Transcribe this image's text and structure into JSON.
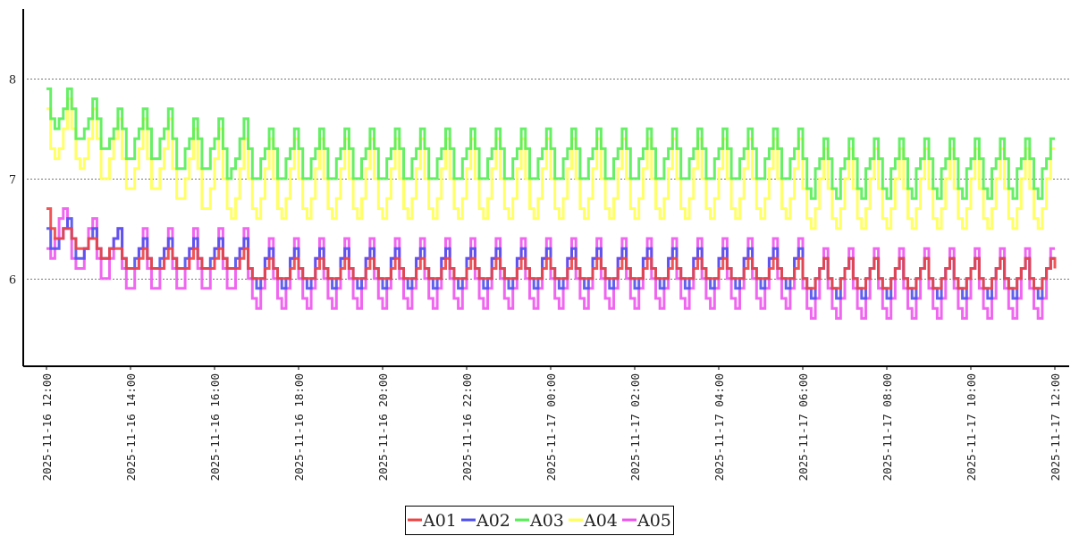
{
  "chart_data": {
    "type": "line",
    "title": "",
    "xlabel": "",
    "ylabel": "",
    "ylim": [
      5.12,
      8.7
    ],
    "yticks": [
      "6",
      "7",
      "8"
    ],
    "grid": "horizontal dotted",
    "legend_position": "bottom-center",
    "x_start": "2025-11-16 12:00",
    "x_step_minutes": 6,
    "x_range_hours": [
      0,
      24
    ],
    "xticks": [
      {
        "hour": 0,
        "label": "2025-11-16 12:00"
      },
      {
        "hour": 2,
        "label": "2025-11-16 14:00"
      },
      {
        "hour": 4,
        "label": "2025-11-16 16:00"
      },
      {
        "hour": 6,
        "label": "2025-11-16 18:00"
      },
      {
        "hour": 8,
        "label": "2025-11-16 20:00"
      },
      {
        "hour": 10,
        "label": "2025-11-16 22:00"
      },
      {
        "hour": 12,
        "label": "2025-11-17 00:00"
      },
      {
        "hour": 14,
        "label": "2025-11-17 02:00"
      },
      {
        "hour": 16,
        "label": "2025-11-17 04:00"
      },
      {
        "hour": 18,
        "label": "2025-11-17 06:00"
      },
      {
        "hour": 20,
        "label": "2025-11-17 08:00"
      },
      {
        "hour": 22,
        "label": "2025-11-17 10:00"
      },
      {
        "hour": 24,
        "label": "2025-11-17 12:00"
      }
    ],
    "series": [
      {
        "name": "A01",
        "color": "#ee4444",
        "segments": [
          {
            "pattern": [
              6.7,
              6.5,
              6.4,
              6.4,
              6.5,
              6.5
            ],
            "repeat": 1
          },
          {
            "pattern": [
              6.4,
              6.3,
              6.3,
              6.3,
              6.4,
              6.4
            ],
            "repeat": 1
          },
          {
            "pattern": [
              6.3,
              6.2,
              6.2,
              6.3,
              6.3,
              6.3
            ],
            "repeat": 1
          },
          {
            "pattern": [
              6.2,
              6.1,
              6.1,
              6.1,
              6.2,
              6.3
            ],
            "repeat": 5
          },
          {
            "pattern": [
              6.1,
              6.0,
              6.0,
              6.0,
              6.1,
              6.2
            ],
            "repeat": 22
          },
          {
            "pattern": [
              6.0,
              5.9,
              5.9,
              6.0,
              6.1,
              6.2
            ],
            "repeat": 10
          }
        ],
        "end": 6.1
      },
      {
        "name": "A02",
        "color": "#5050ee",
        "segments": [
          {
            "pattern": [
              6.5,
              6.3,
              6.3,
              6.4,
              6.5,
              6.6
            ],
            "repeat": 1
          },
          {
            "pattern": [
              6.4,
              6.2,
              6.2,
              6.3,
              6.4,
              6.5
            ],
            "repeat": 1
          },
          {
            "pattern": [
              6.3,
              6.2,
              6.2,
              6.3,
              6.4,
              6.5
            ],
            "repeat": 1
          },
          {
            "pattern": [
              6.2,
              6.1,
              6.1,
              6.2,
              6.3,
              6.4
            ],
            "repeat": 5
          },
          {
            "pattern": [
              6.1,
              6.0,
              5.9,
              6.0,
              6.2,
              6.3
            ],
            "repeat": 22
          },
          {
            "pattern": [
              6.0,
              5.9,
              5.8,
              6.0,
              6.1,
              6.2
            ],
            "repeat": 10
          }
        ],
        "end": 6.2
      },
      {
        "name": "A03",
        "color": "#55ee55",
        "segments": [
          {
            "pattern": [
              7.9,
              7.6,
              7.5,
              7.6,
              7.7,
              7.9
            ],
            "repeat": 1
          },
          {
            "pattern": [
              7.7,
              7.4,
              7.4,
              7.5,
              7.6,
              7.8
            ],
            "repeat": 1
          },
          {
            "pattern": [
              7.6,
              7.3,
              7.3,
              7.4,
              7.5,
              7.7
            ],
            "repeat": 1
          },
          {
            "pattern": [
              7.5,
              7.2,
              7.2,
              7.4,
              7.5,
              7.7
            ],
            "repeat": 2
          },
          {
            "pattern": [
              7.4,
              7.1,
              7.1,
              7.3,
              7.4,
              7.6
            ],
            "repeat": 2
          },
          {
            "pattern": [
              7.3,
              7.0,
              7.1,
              7.2,
              7.4,
              7.6
            ],
            "repeat": 1
          },
          {
            "pattern": [
              7.3,
              7.0,
              7.0,
              7.2,
              7.3,
              7.5
            ],
            "repeat": 22
          },
          {
            "pattern": [
              7.2,
              6.9,
              6.8,
              7.1,
              7.2,
              7.4
            ],
            "repeat": 10
          }
        ],
        "end": 7.4
      },
      {
        "name": "A04",
        "color": "#ffff55",
        "segments": [
          {
            "pattern": [
              7.7,
              7.3,
              7.2,
              7.3,
              7.5,
              7.8
            ],
            "repeat": 1
          },
          {
            "pattern": [
              7.5,
              7.2,
              7.1,
              7.2,
              7.4,
              7.7
            ],
            "repeat": 1
          },
          {
            "pattern": [
              7.4,
              7.0,
              7.0,
              7.2,
              7.4,
              7.6
            ],
            "repeat": 1
          },
          {
            "pattern": [
              7.2,
              6.9,
              6.9,
              7.1,
              7.3,
              7.6
            ],
            "repeat": 2
          },
          {
            "pattern": [
              7.1,
              6.8,
              6.8,
              7.0,
              7.2,
              7.5
            ],
            "repeat": 1
          },
          {
            "pattern": [
              7.1,
              6.7,
              6.7,
              6.9,
              7.2,
              7.5
            ],
            "repeat": 1
          },
          {
            "pattern": [
              7.0,
              6.7,
              6.6,
              6.8,
              7.1,
              7.4
            ],
            "repeat": 23
          },
          {
            "pattern": [
              6.9,
              6.6,
              6.5,
              6.7,
              7.0,
              7.3
            ],
            "repeat": 10
          }
        ],
        "end": 7.3
      },
      {
        "name": "A05",
        "color": "#ee55ee",
        "segments": [
          {
            "pattern": [
              6.3,
              6.2,
              6.4,
              6.6,
              6.7,
              6.5
            ],
            "repeat": 1
          },
          {
            "pattern": [
              6.2,
              6.1,
              6.1,
              6.3,
              6.5,
              6.6
            ],
            "repeat": 1
          },
          {
            "pattern": [
              6.2,
              6.0,
              6.0,
              6.2,
              6.4,
              6.5
            ],
            "repeat": 1
          },
          {
            "pattern": [
              6.1,
              5.9,
              5.9,
              6.1,
              6.3,
              6.5
            ],
            "repeat": 5
          },
          {
            "pattern": [
              6.0,
              5.8,
              5.7,
              5.9,
              6.2,
              6.4
            ],
            "repeat": 22
          },
          {
            "pattern": [
              5.9,
              5.7,
              5.6,
              5.8,
              6.1,
              6.3
            ],
            "repeat": 10
          }
        ],
        "end": 6.3
      }
    ]
  }
}
